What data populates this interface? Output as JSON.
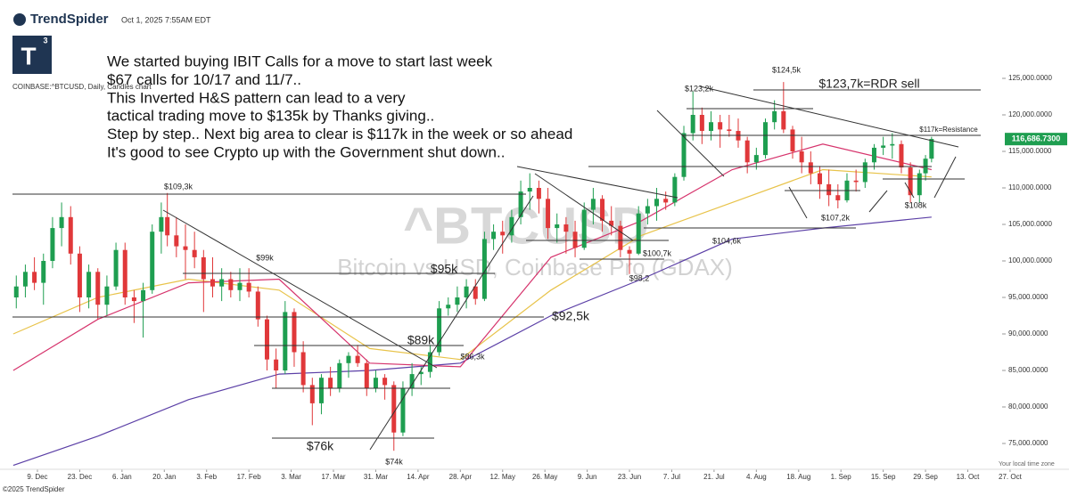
{
  "header": {
    "brand": "TrendSpider",
    "timestamp": "Oct 1, 2025 7:55AM EDT",
    "logo_letter": "T",
    "logo_sup": "3",
    "symbol_info": "COINBASE:^BTCUSD, Daily, Candles chart",
    "footer": "©2025 TrendSpider",
    "timezone": "Your local time zone"
  },
  "chart_data": {
    "type": "candlestick",
    "watermark_title": "^BTCUSD",
    "watermark_subtitle": "Bitcoin vs USD, Coinbase Pro (GDAX)",
    "notes": [
      "We started buying IBIT Calls for a move to start last week",
      "$67 calls for 10/17 and 11/7..",
      "This Inverted H&S pattern can lead to a very",
      "tactical trading move to $135k by Thanks giving..",
      "Step by step.. Next big area to clear is $117k in the week or so ahead",
      "It's good to see Crypto up with the Government shut down.."
    ],
    "annotations": [
      "$109,3k",
      "$99k",
      "$95k",
      "$92,5k",
      "$89k",
      "$86,3k",
      "$76k",
      "$74k",
      "$100,7k",
      "$98,2",
      "$104,6k",
      "$107,2k",
      "$108k",
      "$123,2k",
      "$124,5k",
      "$123,7k=RDR sell",
      "$117k=Resistance"
    ],
    "x": [
      -7,
      -4,
      -1,
      2,
      5,
      8,
      11,
      14,
      17,
      20,
      23,
      26,
      29,
      32,
      35,
      38,
      41,
      43,
      46,
      49,
      52,
      55,
      58,
      61,
      64,
      67,
      70,
      73,
      76,
      79,
      82,
      85,
      88,
      91,
      94,
      97,
      100,
      103,
      106,
      109,
      112,
      115,
      118,
      121,
      124,
      127,
      130,
      133,
      136,
      139,
      142,
      145,
      148,
      151,
      154,
      157,
      160,
      163,
      166,
      169,
      172,
      175,
      178,
      181,
      184,
      187,
      190,
      193,
      196,
      199,
      202,
      205,
      208,
      211,
      214,
      217,
      220,
      223,
      226,
      229,
      232,
      235,
      238,
      241,
      244,
      247,
      250,
      253,
      256,
      259,
      262,
      265,
      268,
      271,
      274,
      277,
      280,
      283,
      286,
      289,
      292,
      294,
      296
    ],
    "open": [
      95000,
      96500,
      98500,
      97000,
      100000,
      104500,
      106000,
      101000,
      95000,
      98500,
      94000,
      96500,
      101500,
      95000,
      94500,
      96000,
      104000,
      106000,
      103500,
      102000,
      101500,
      100500,
      97500,
      96500,
      97500,
      96000,
      97000,
      95800,
      92000,
      86500,
      85000,
      93000,
      87500,
      83000,
      80500,
      84000,
      82500,
      86000,
      87000,
      86000,
      82500,
      84000,
      83000,
      76500,
      82500,
      84500,
      84800,
      87500,
      93500,
      94000,
      95000,
      96500,
      94800,
      103000,
      104000,
      103500,
      106000,
      109500,
      110000,
      108500,
      104500,
      105000,
      104000,
      101800,
      107000,
      108500,
      105500,
      104800,
      101500,
      101000,
      106500,
      107500,
      108500,
      108000,
      111500,
      117500,
      120000,
      117800,
      119000,
      118000,
      117800,
      116500,
      113500,
      114500,
      119000,
      120500,
      118000,
      115000,
      113500,
      112000,
      110500,
      109000,
      108300,
      111000,
      110800,
      113500,
      115500,
      115800,
      116000,
      112800,
      109000,
      112000,
      114000
    ],
    "high": [
      98000,
      99500,
      100500,
      101000,
      106000,
      108000,
      107500,
      102000,
      99500,
      99000,
      98000,
      102500,
      102500,
      96000,
      97000,
      105000,
      108000,
      109300,
      106000,
      105000,
      104000,
      101500,
      100500,
      99000,
      98500,
      99000,
      99000,
      96500,
      92500,
      88000,
      94500,
      93500,
      89000,
      84000,
      84500,
      85500,
      86500,
      87500,
      88500,
      86500,
      85000,
      84500,
      83500,
      83500,
      86000,
      85500,
      88500,
      94500,
      95000,
      96500,
      97500,
      97500,
      104000,
      105000,
      105500,
      107000,
      111000,
      112000,
      111000,
      110000,
      106500,
      106000,
      105500,
      108000,
      110000,
      109000,
      107500,
      105500,
      102000,
      107500,
      108500,
      110000,
      109500,
      112000,
      118500,
      123200,
      121000,
      120500,
      120000,
      120000,
      119500,
      117000,
      115500,
      119500,
      122000,
      124500,
      118500,
      117000,
      115000,
      113000,
      112500,
      110500,
      112000,
      112500,
      114000,
      116000,
      117000,
      117500,
      116500,
      113500,
      112500,
      114500,
      117000
    ],
    "low": [
      93500,
      95000,
      96000,
      94000,
      99000,
      102000,
      99500,
      93000,
      93500,
      92000,
      92500,
      96000,
      94000,
      91500,
      89500,
      95500,
      101000,
      102000,
      100500,
      97500,
      99000,
      93000,
      95000,
      94500,
      95000,
      94500,
      95000,
      91000,
      85000,
      82500,
      84500,
      85500,
      82000,
      77500,
      79000,
      81500,
      82000,
      84000,
      85500,
      81500,
      82000,
      81000,
      74000,
      76000,
      81500,
      83000,
      84000,
      87000,
      92500,
      93000,
      93500,
      94000,
      94500,
      101500,
      101000,
      102500,
      105000,
      107000,
      106500,
      103000,
      102500,
      101000,
      100500,
      101500,
      105000,
      104000,
      103500,
      100500,
      98200,
      100800,
      105000,
      105500,
      107000,
      107500,
      111000,
      116500,
      116000,
      116500,
      115500,
      117000,
      115500,
      112000,
      112500,
      114000,
      118000,
      117500,
      114000,
      112000,
      110500,
      108500,
      107500,
      107200,
      108000,
      109500,
      110000,
      112500,
      114500,
      114000,
      112000,
      108000,
      108000,
      111000,
      113500
    ],
    "close": [
      96500,
      98500,
      97000,
      100000,
      104500,
      106000,
      101000,
      95000,
      98500,
      94000,
      96500,
      101500,
      95000,
      94500,
      96000,
      104000,
      106000,
      103500,
      102000,
      101500,
      100500,
      97500,
      96500,
      97500,
      96000,
      97000,
      95800,
      92000,
      86500,
      85000,
      93000,
      87500,
      83000,
      80500,
      84000,
      82500,
      86000,
      87000,
      86000,
      82500,
      84000,
      83000,
      76500,
      82500,
      84500,
      84800,
      87500,
      93500,
      94000,
      95000,
      96500,
      94800,
      103000,
      104000,
      103500,
      106000,
      109500,
      110000,
      108500,
      104500,
      105000,
      104000,
      101800,
      107000,
      108500,
      105500,
      104800,
      101500,
      101000,
      106500,
      107500,
      108500,
      108000,
      111500,
      117500,
      120000,
      117800,
      119000,
      118000,
      117800,
      116500,
      113500,
      114500,
      119000,
      120500,
      118000,
      115000,
      113500,
      112000,
      110500,
      109000,
      108300,
      111000,
      110800,
      113500,
      115500,
      115800,
      116000,
      112800,
      109000,
      112000,
      114000,
      116700
    ],
    "up_color": "#1e9e50",
    "down_color": "#e0383a",
    "series": [
      {
        "color": "#5b3fa6",
        "x": [
          -8,
          20,
          50,
          80,
          110,
          140,
          170,
          200,
          230,
          260,
          296
        ],
        "values": [
          72000,
          76000,
          81000,
          84500,
          85000,
          86000,
          92500,
          97500,
          103000,
          104500,
          106000
        ]
      },
      {
        "color": "#e8c34a",
        "x": [
          -8,
          20,
          50,
          80,
          110,
          140,
          170,
          200,
          230,
          260,
          296
        ],
        "values": [
          90000,
          95000,
          97500,
          96000,
          88000,
          86500,
          96000,
          103500,
          108000,
          112500,
          111500
        ]
      },
      {
        "color": "#d6336c",
        "x": [
          -8,
          20,
          50,
          80,
          110,
          140,
          170,
          200,
          230,
          260,
          296
        ],
        "values": [
          85000,
          92000,
          97000,
          97500,
          86000,
          85500,
          100500,
          105500,
          112500,
          116000,
          112500
        ]
      }
    ],
    "last_price": {
      "value": 116686.73,
      "label": "116,686.7300"
    },
    "ylim": [
      72500,
      128200
    ],
    "yticks": [
      {
        "value": 75000,
        "label": "75,000.0000"
      },
      {
        "value": 80000,
        "label": "80,000.0000"
      },
      {
        "value": 85000,
        "label": "85,000.0000"
      },
      {
        "value": 90000,
        "label": "90,000.0000"
      },
      {
        "value": 95000,
        "label": "95,000.0000"
      },
      {
        "value": 100000,
        "label": "100,000.0000"
      },
      {
        "value": 105000,
        "label": "105,000.0000"
      },
      {
        "value": 110000,
        "label": "110,000.0000"
      },
      {
        "value": 115000,
        "label": "115,000.0000"
      },
      {
        "value": 120000,
        "label": "120,000.0000"
      },
      {
        "value": 125000,
        "label": "125,000.0000"
      }
    ],
    "xlim": [
      -8.26,
      341.5
    ],
    "xticks": [
      {
        "value": 0,
        "label": "9. Dec"
      },
      {
        "value": 14,
        "label": "23. Dec"
      },
      {
        "value": 28,
        "label": "6. Jan"
      },
      {
        "value": 42,
        "label": "20. Jan"
      },
      {
        "value": 56,
        "label": "3. Feb"
      },
      {
        "value": 70,
        "label": "17. Feb"
      },
      {
        "value": 84,
        "label": "3. Mar"
      },
      {
        "value": 98,
        "label": "17. Mar"
      },
      {
        "value": 112,
        "label": "31. Mar"
      },
      {
        "value": 126,
        "label": "14. Apr"
      },
      {
        "value": 140,
        "label": "28. Apr"
      },
      {
        "value": 154,
        "label": "12. May"
      },
      {
        "value": 168,
        "label": "26. May"
      },
      {
        "value": 182,
        "label": "9. Jun"
      },
      {
        "value": 196,
        "label": "23. Jun"
      },
      {
        "value": 210,
        "label": "7. Jul"
      },
      {
        "value": 224,
        "label": "21. Jul"
      },
      {
        "value": 238,
        "label": "4. Aug"
      },
      {
        "value": 252,
        "label": "18. Aug"
      },
      {
        "value": 266,
        "label": "1. Sep"
      },
      {
        "value": 280,
        "label": "15. Sep"
      },
      {
        "value": 294,
        "label": "29. Sep"
      },
      {
        "value": 308,
        "label": "13. Oct"
      },
      {
        "value": 322,
        "label": "27. Oct"
      }
    ]
  }
}
